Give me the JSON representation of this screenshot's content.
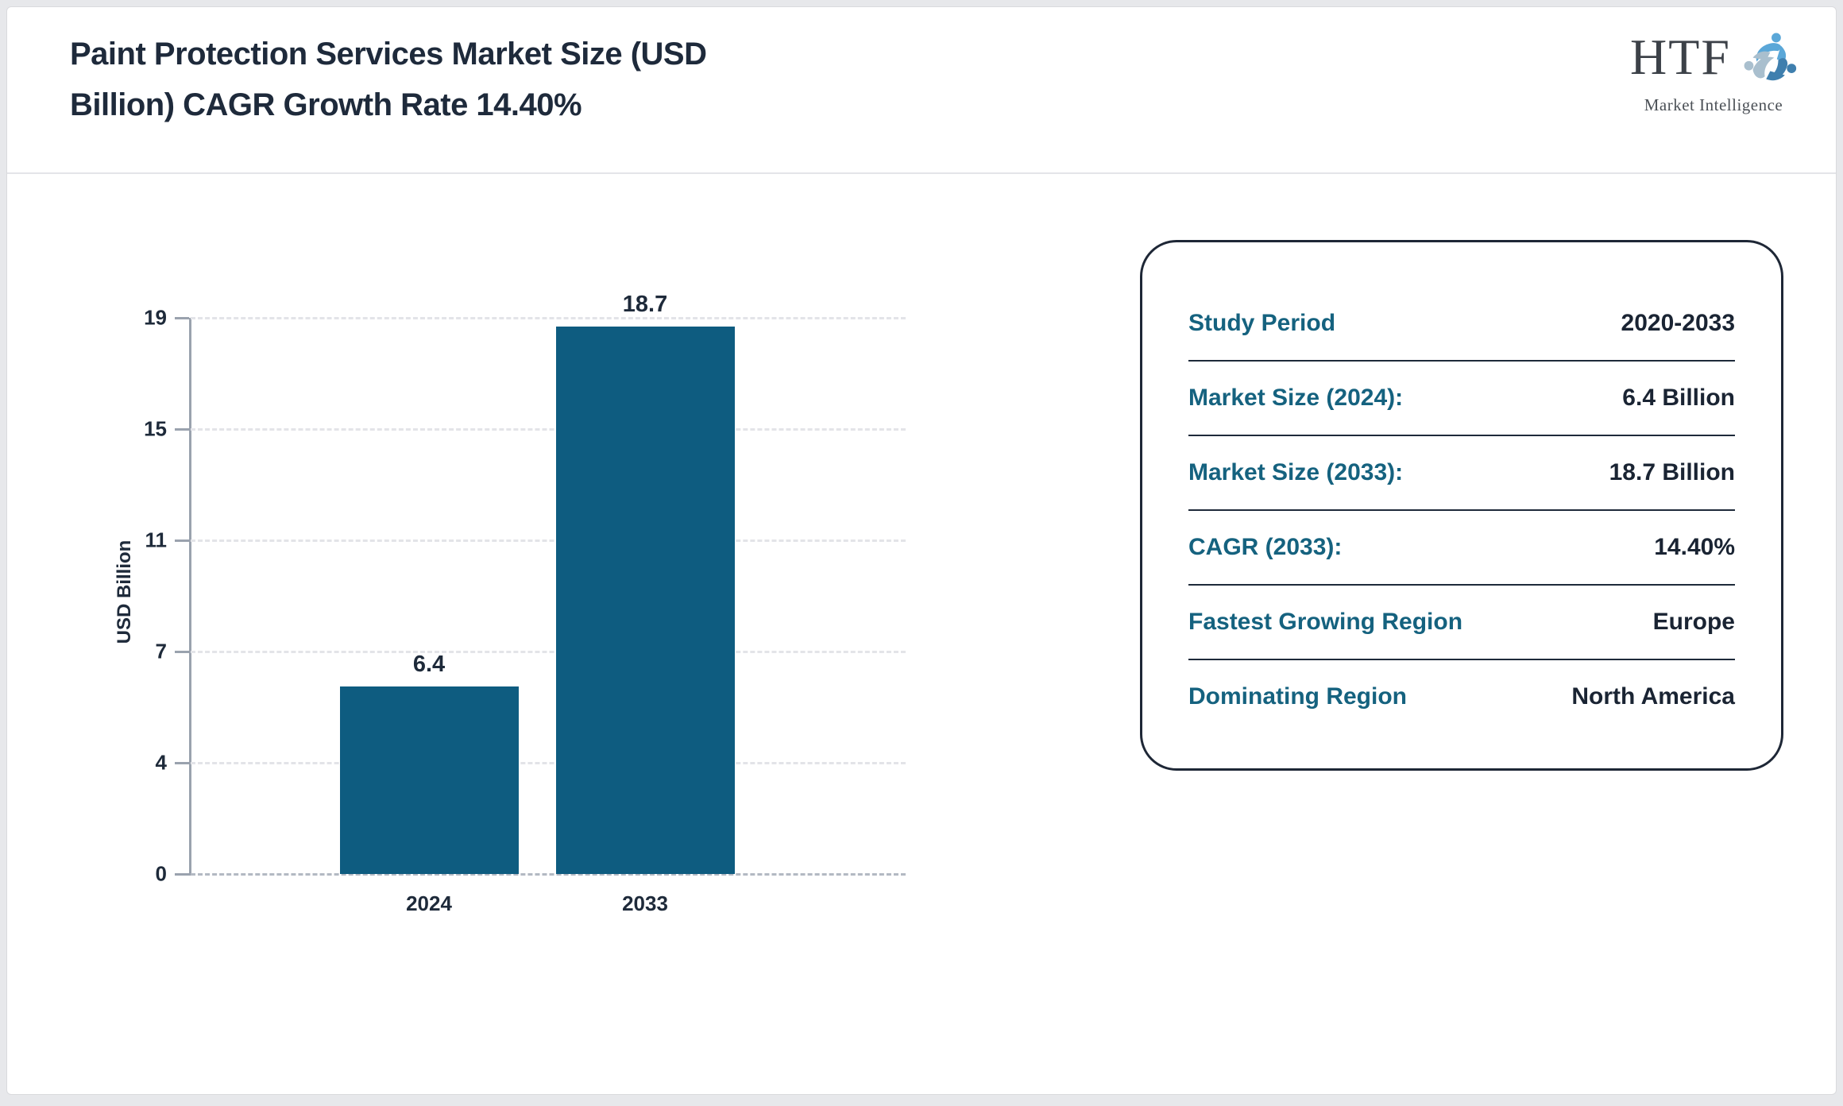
{
  "header": {
    "title": "Paint Protection Services Market Size (USD Billion) CAGR Growth Rate 14.40%"
  },
  "logo": {
    "name": "HTF",
    "subtitle": "Market Intelligence",
    "colors": {
      "light_blue": "#5aa7d8",
      "steel_blue": "#3f7fae",
      "gray_blue": "#a9bfce",
      "text": "#3c4148"
    }
  },
  "chart_data": {
    "type": "bar",
    "title": "Paint Protection Services Market Size (USD Billion) CAGR Growth Rate 14.40%",
    "categories": [
      "2024",
      "2033"
    ],
    "values": [
      6.4,
      18.7
    ],
    "value_labels": [
      "6.4",
      "18.7"
    ],
    "xlabel": "",
    "ylabel": "USD Billion",
    "yticks": [
      19,
      15,
      11,
      7,
      4,
      0
    ],
    "ylim": [
      0,
      19
    ],
    "grid": "horizontal-dashed",
    "legend": "none",
    "bar_color": "#0e5c80"
  },
  "info_panel": {
    "rows": [
      {
        "label": "Study Period",
        "value": "2020-2033"
      },
      {
        "label": "Market Size (2024):",
        "value": "6.4 Billion"
      },
      {
        "label": "Market Size (2033):",
        "value": "18.7 Billion"
      },
      {
        "label": "CAGR (2033):",
        "value": "14.40%"
      },
      {
        "label": "Fastest Growing Region",
        "value": "Europe"
      },
      {
        "label": "Dominating Region",
        "value": "North America"
      }
    ]
  },
  "colors": {
    "title_text": "#1e2a3b",
    "panel_label": "#15627f",
    "panel_value": "#1a2433",
    "panel_border": "#1e2736",
    "axis": "#9aa2ae",
    "gridline": "#e3e4e8",
    "background": "#ffffff",
    "page_background": "#e7e8eb"
  }
}
